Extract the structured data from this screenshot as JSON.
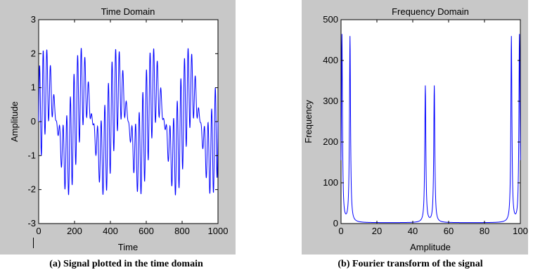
{
  "colors": {
    "figure_bg": "#c8c8c8",
    "axes_bg": "#ffffff",
    "line": "#0000ff",
    "axis": "#000000"
  },
  "chart_data": [
    {
      "type": "line",
      "title": "Time Domain",
      "xlabel": "Time",
      "ylabel": "Amplitude",
      "xlim": [
        0,
        1000
      ],
      "ylim": [
        -3,
        3
      ],
      "xticks": [
        "0",
        "200",
        "400",
        "600",
        "800",
        "1000"
      ],
      "yticks": [
        "-3",
        "-2",
        "-1",
        "0",
        "1",
        "2",
        "3"
      ],
      "grid": false,
      "series": [
        {
          "components": [
            {
              "amplitude": 1.0,
              "cycles_per_window": 5
            },
            {
              "amplitude": 0.75,
              "cycles_per_window": 47
            },
            {
              "amplitude": 0.75,
              "cycles_per_window": 52
            }
          ],
          "samples": 1000
        }
      ]
    },
    {
      "type": "line",
      "title": "Frequency Domain",
      "xlabel": "Amplitude",
      "ylabel": "Frequency",
      "xlim": [
        0,
        100
      ],
      "ylim": [
        0,
        500
      ],
      "xticks": [
        "0",
        "20",
        "40",
        "60",
        "80",
        "100"
      ],
      "yticks": [
        "0",
        "100",
        "200",
        "300",
        "400",
        "500"
      ],
      "grid": false,
      "series": [
        {
          "peaks": [
            {
              "x": 0.5,
              "y": 460
            },
            {
              "x": 5,
              "y": 455
            },
            {
              "x": 47,
              "y": 335
            },
            {
              "x": 52,
              "y": 335
            },
            {
              "x": 95,
              "y": 455
            },
            {
              "x": 99.5,
              "y": 460
            }
          ]
        }
      ]
    }
  ],
  "captions": {
    "a": "(a)  Signal plotted in the time domain",
    "b": "(b)  Fourier transform of the signal"
  }
}
